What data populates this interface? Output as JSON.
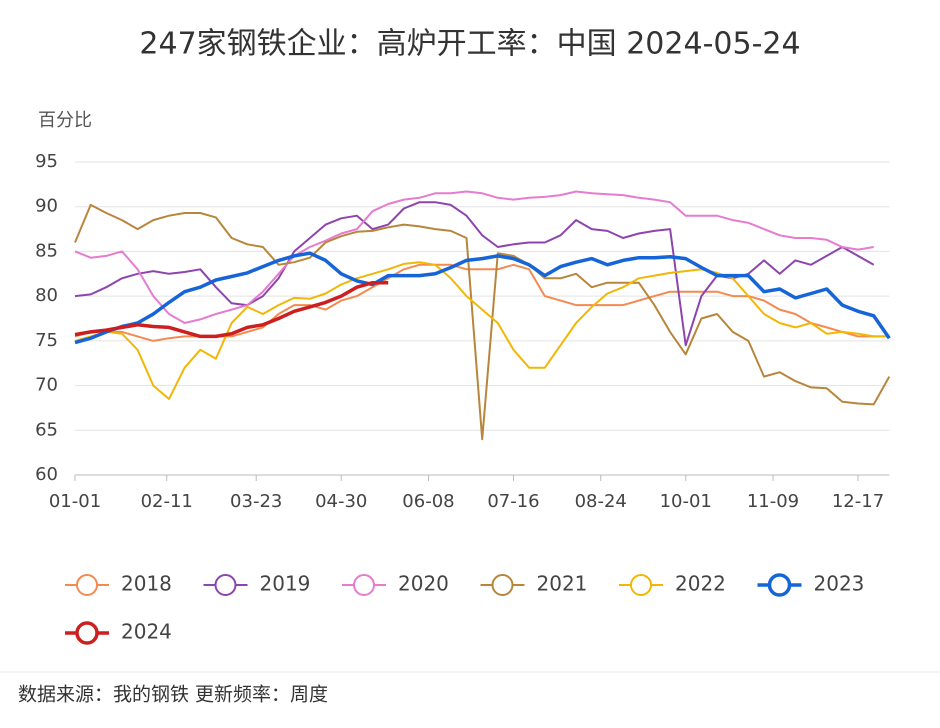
{
  "chart_data": {
    "type": "line",
    "title": "247家钢铁企业：高炉开工率：中国 2024-05-24",
    "y_axis_label": "百分比",
    "source": "数据来源：我的钢铁  更新频率：周度",
    "x": [
      0,
      7,
      14,
      21,
      28,
      35,
      42,
      49,
      56,
      63,
      70,
      77,
      84,
      91,
      98,
      105,
      112,
      119,
      126,
      133,
      140,
      147,
      154,
      161,
      168,
      175,
      182,
      189,
      196,
      203,
      210,
      217,
      224,
      231,
      238,
      245,
      252,
      259,
      266,
      273,
      280,
      287,
      294,
      301,
      308,
      315,
      322,
      329,
      336,
      343,
      350,
      357,
      364
    ],
    "xlim": [
      0,
      364
    ],
    "xticks": [
      {
        "value": 0,
        "label": "01-01"
      },
      {
        "value": 41,
        "label": "02-11"
      },
      {
        "value": 81,
        "label": "03-23"
      },
      {
        "value": 119,
        "label": "04-30"
      },
      {
        "value": 158,
        "label": "06-08"
      },
      {
        "value": 196,
        "label": "07-16"
      },
      {
        "value": 235,
        "label": "08-24"
      },
      {
        "value": 273,
        "label": "10-01"
      },
      {
        "value": 312,
        "label": "11-09"
      },
      {
        "value": 350,
        "label": "12-17"
      }
    ],
    "ylim": [
      60,
      95
    ],
    "yticks": [
      60,
      65,
      70,
      75,
      80,
      85,
      90,
      95
    ],
    "grid": true,
    "series": [
      {
        "name": "2018",
        "color": "#f58a50",
        "line_width": 2,
        "values": [
          75.5,
          76,
          76,
          76,
          75.5,
          75,
          75.3,
          75.5,
          75.5,
          75.5,
          75.5,
          76,
          76.5,
          78,
          79,
          79,
          78.5,
          79.5,
          80,
          81,
          82,
          83,
          83.5,
          83.5,
          83.5,
          83,
          83,
          83,
          83.5,
          83,
          80,
          79.5,
          79,
          79,
          79,
          79,
          79.5,
          80,
          80.5,
          80.5,
          80.5,
          80.5,
          80,
          80,
          79.5,
          78.5,
          78,
          77,
          76.5,
          76,
          75.5,
          75.5,
          75.5
        ]
      },
      {
        "name": "2019",
        "color": "#8e44ad",
        "line_width": 2,
        "values": [
          80,
          80.2,
          81,
          82,
          82.5,
          82.8,
          82.5,
          82.7,
          83,
          81,
          79.2,
          79,
          80,
          82,
          85,
          86.5,
          88,
          88.7,
          89,
          87.5,
          88,
          89.8,
          90.5,
          90.5,
          90.2,
          89,
          86.8,
          85.5,
          85.8,
          86,
          86,
          86.8,
          88.5,
          87.5,
          87.3,
          86.5,
          87,
          87.3,
          87.5,
          74.5,
          80,
          82.3,
          82,
          82.5,
          84,
          82.5,
          84,
          83.5,
          84.5,
          85.5,
          84.5,
          83.5,
          null
        ]
      },
      {
        "name": "2020",
        "color": "#e67bd0",
        "line_width": 2,
        "values": [
          85,
          84.3,
          84.5,
          85,
          83,
          80,
          78,
          77,
          77.4,
          78,
          78.5,
          79,
          80.5,
          82.5,
          84.5,
          85.5,
          86.2,
          87,
          87.5,
          89.5,
          90.3,
          90.8,
          91,
          91.5,
          91.5,
          91.7,
          91.5,
          91,
          90.8,
          91,
          91.1,
          91.3,
          91.7,
          91.5,
          91.4,
          91.3,
          91,
          90.8,
          90.5,
          89,
          89,
          89,
          88.5,
          88.2,
          87.5,
          86.8,
          86.5,
          86.5,
          86.3,
          85.5,
          85.2,
          85.5,
          null
        ]
      },
      {
        "name": "2021",
        "color": "#b8863b",
        "line_width": 2,
        "values": [
          86,
          90.2,
          89.3,
          88.5,
          87.5,
          88.5,
          89,
          89.3,
          89.3,
          88.8,
          86.5,
          85.8,
          85.5,
          83.5,
          83.8,
          84.3,
          86,
          86.7,
          87.2,
          87.3,
          87.7,
          88,
          87.8,
          87.5,
          87.3,
          86.5,
          64,
          84.8,
          84.5,
          83.5,
          82,
          82,
          82.5,
          81,
          81.5,
          81.5,
          81.5,
          79,
          76,
          73.5,
          77.5,
          78,
          76,
          75,
          71,
          71.5,
          70.5,
          69.8,
          69.7,
          68.2,
          68,
          67.9,
          71
        ]
      },
      {
        "name": "2022",
        "color": "#f2b705",
        "line_width": 2,
        "values": [
          75,
          75.5,
          76,
          75.8,
          74,
          70,
          68.5,
          72,
          74,
          73,
          77,
          78.8,
          78,
          79,
          79.8,
          79.7,
          80.3,
          81.3,
          82,
          82.5,
          83,
          83.6,
          83.8,
          83.5,
          82,
          80,
          78.5,
          77,
          74,
          72,
          72,
          74.5,
          77,
          78.8,
          80.3,
          81,
          82,
          82.3,
          82.6,
          82.8,
          83,
          82.6,
          82,
          80,
          78,
          77,
          76.5,
          77,
          75.8,
          76,
          75.8,
          75.5,
          75.5
        ]
      },
      {
        "name": "2023",
        "color": "#1565d8",
        "line_width": 3.5,
        "values": [
          74.8,
          75.3,
          76,
          76.6,
          77,
          78,
          79.3,
          80.5,
          81,
          81.8,
          82.2,
          82.6,
          83.3,
          84,
          84.5,
          84.8,
          84,
          82.5,
          81.7,
          81.3,
          82.3,
          82.3,
          82.3,
          82.5,
          83.2,
          84,
          84.2,
          84.5,
          84.2,
          83.5,
          82.3,
          83.3,
          83.8,
          84.2,
          83.5,
          84,
          84.3,
          84.3,
          84.4,
          84.2,
          83.2,
          82.3,
          82.3,
          82.3,
          80.5,
          80.8,
          79.8,
          80.3,
          80.8,
          79,
          78.3,
          77.8,
          75.3
        ]
      },
      {
        "name": "2024",
        "color": "#cc1f1f",
        "line_width": 3.5,
        "values": [
          75.7,
          76,
          76.2,
          76.5,
          76.8,
          76.6,
          76.5,
          76,
          75.5,
          75.5,
          75.8,
          76.5,
          76.8,
          77.5,
          78.3,
          78.8,
          79.3,
          80,
          81,
          81.5,
          81.5,
          null,
          null,
          null,
          null,
          null,
          null,
          null,
          null,
          null,
          null,
          null,
          null,
          null,
          null,
          null,
          null,
          null,
          null,
          null,
          null,
          null,
          null,
          null,
          null,
          null,
          null,
          null,
          null,
          null,
          null,
          null,
          null
        ]
      }
    ]
  }
}
